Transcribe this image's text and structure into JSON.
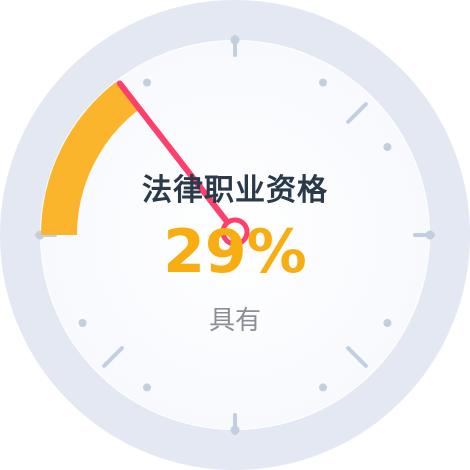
{
  "chart_data": {
    "type": "gauge",
    "title": "法律职业资格",
    "value": 29,
    "value_label": "29%",
    "status_label": "具有",
    "range": [
      0,
      100
    ],
    "colors": {
      "progress": "#fbb52c",
      "needle": "#ff3f6c",
      "outer_ring": "#e4e8f2",
      "face": "#ffffff",
      "ticks": "#c3cfdf",
      "title": "#2b3a4a",
      "value": "#f8ad10",
      "status": "#8a8f96"
    }
  }
}
